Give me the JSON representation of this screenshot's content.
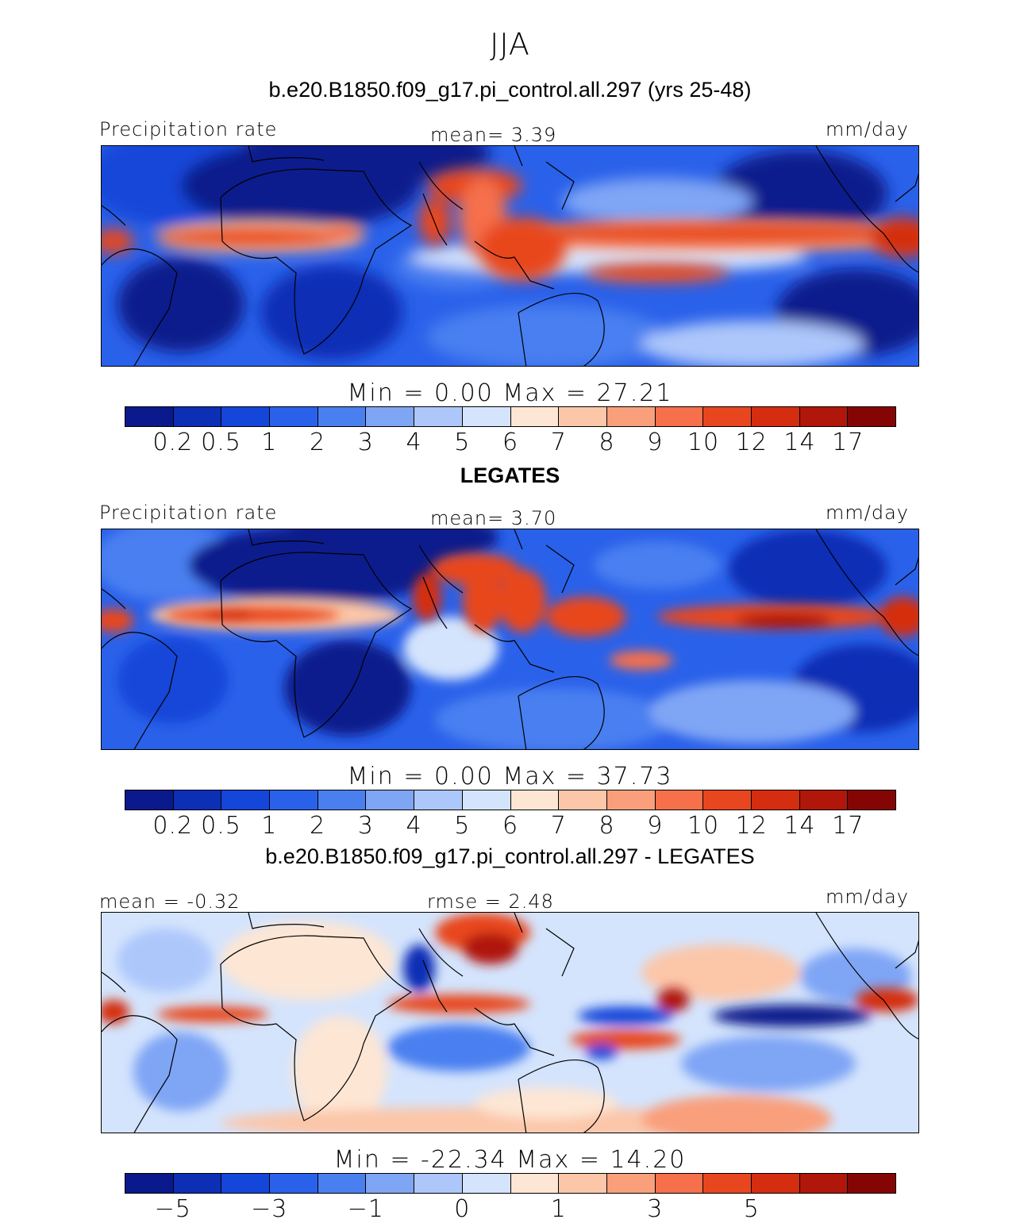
{
  "title": "JJA",
  "case_title": "b.e20.B1850.f09_g17.pi_control.all.297 (yrs 25-48)",
  "colors": {
    "abs_scale": [
      "#0a1a8c",
      "#0d2fb5",
      "#1446d9",
      "#2a61ea",
      "#4a7ff0",
      "#7fa5f5",
      "#adc7fb",
      "#d4e4fd",
      "#fde6d4",
      "#fcc6a8",
      "#f99f7b",
      "#f5704b",
      "#e8461f",
      "#d42d0f",
      "#b0170a",
      "#850505"
    ],
    "diff_scale": [
      "#0a1a8c",
      "#0d2fb5",
      "#1446d9",
      "#2a61ea",
      "#4a7ff0",
      "#7fa5f5",
      "#adc7fb",
      "#d4e4fd",
      "#fde6d4",
      "#fcc6a8",
      "#f99f7b",
      "#f5704b",
      "#e8461f",
      "#d42d0f",
      "#b0170a",
      "#850505"
    ]
  },
  "panels": [
    {
      "id": "model",
      "header": "",
      "left_label": "Precipitation rate",
      "center_label": "mean=    3.39",
      "right_label": "mm/day",
      "minmax": "Min  =    0.00  Max  =   27.21",
      "ticks": [
        "0.2",
        "0.5",
        "1",
        "2",
        "3",
        "4",
        "5",
        "6",
        "7",
        "8",
        "9",
        "10",
        "12",
        "14",
        "17"
      ]
    },
    {
      "id": "obs",
      "header": "LEGATES",
      "left_label": "Precipitation rate",
      "center_label": "mean=    3.70",
      "right_label": "mm/day",
      "minmax": "Min  =    0.00  Max  =   37.73",
      "ticks": [
        "0.2",
        "0.5",
        "1",
        "2",
        "3",
        "4",
        "5",
        "6",
        "7",
        "8",
        "9",
        "10",
        "12",
        "14",
        "17"
      ]
    },
    {
      "id": "diff",
      "header": "b.e20.B1850.f09_g17.pi_control.all.297 - LEGATES",
      "left_label": "mean  =   -0.32",
      "center_label": "rmse  =    2.48",
      "right_label": "mm/day",
      "minmax": "Min  = -22.34  Max  =   14.20",
      "ticks": [
        "-5",
        "-3",
        "-1",
        "0",
        "1",
        "3",
        "5"
      ]
    }
  ],
  "chart_data": [
    {
      "type": "heatmap",
      "title": "JJA",
      "subtitle": "b.e20.B1850.f09_g17.pi_control.all.297 (yrs 25-48)",
      "field": "Precipitation rate",
      "units": "mm/day",
      "mean": 3.39,
      "min": 0.0,
      "max": 27.21,
      "levels": [
        0.2,
        0.5,
        1,
        2,
        3,
        4,
        5,
        6,
        7,
        8,
        9,
        10,
        12,
        14,
        17
      ]
    },
    {
      "type": "heatmap",
      "title": "LEGATES",
      "field": "Precipitation rate",
      "units": "mm/day",
      "mean": 3.7,
      "min": 0.0,
      "max": 37.73,
      "levels": [
        0.2,
        0.5,
        1,
        2,
        3,
        4,
        5,
        6,
        7,
        8,
        9,
        10,
        12,
        14,
        17
      ]
    },
    {
      "type": "heatmap",
      "title": "b.e20.B1850.f09_g17.pi_control.all.297 - LEGATES",
      "units": "mm/day",
      "mean": -0.32,
      "rmse": 2.48,
      "min": -22.34,
      "max": 14.2,
      "tick_labels": [
        -5,
        -3,
        -1,
        0,
        1,
        3,
        5
      ]
    }
  ]
}
